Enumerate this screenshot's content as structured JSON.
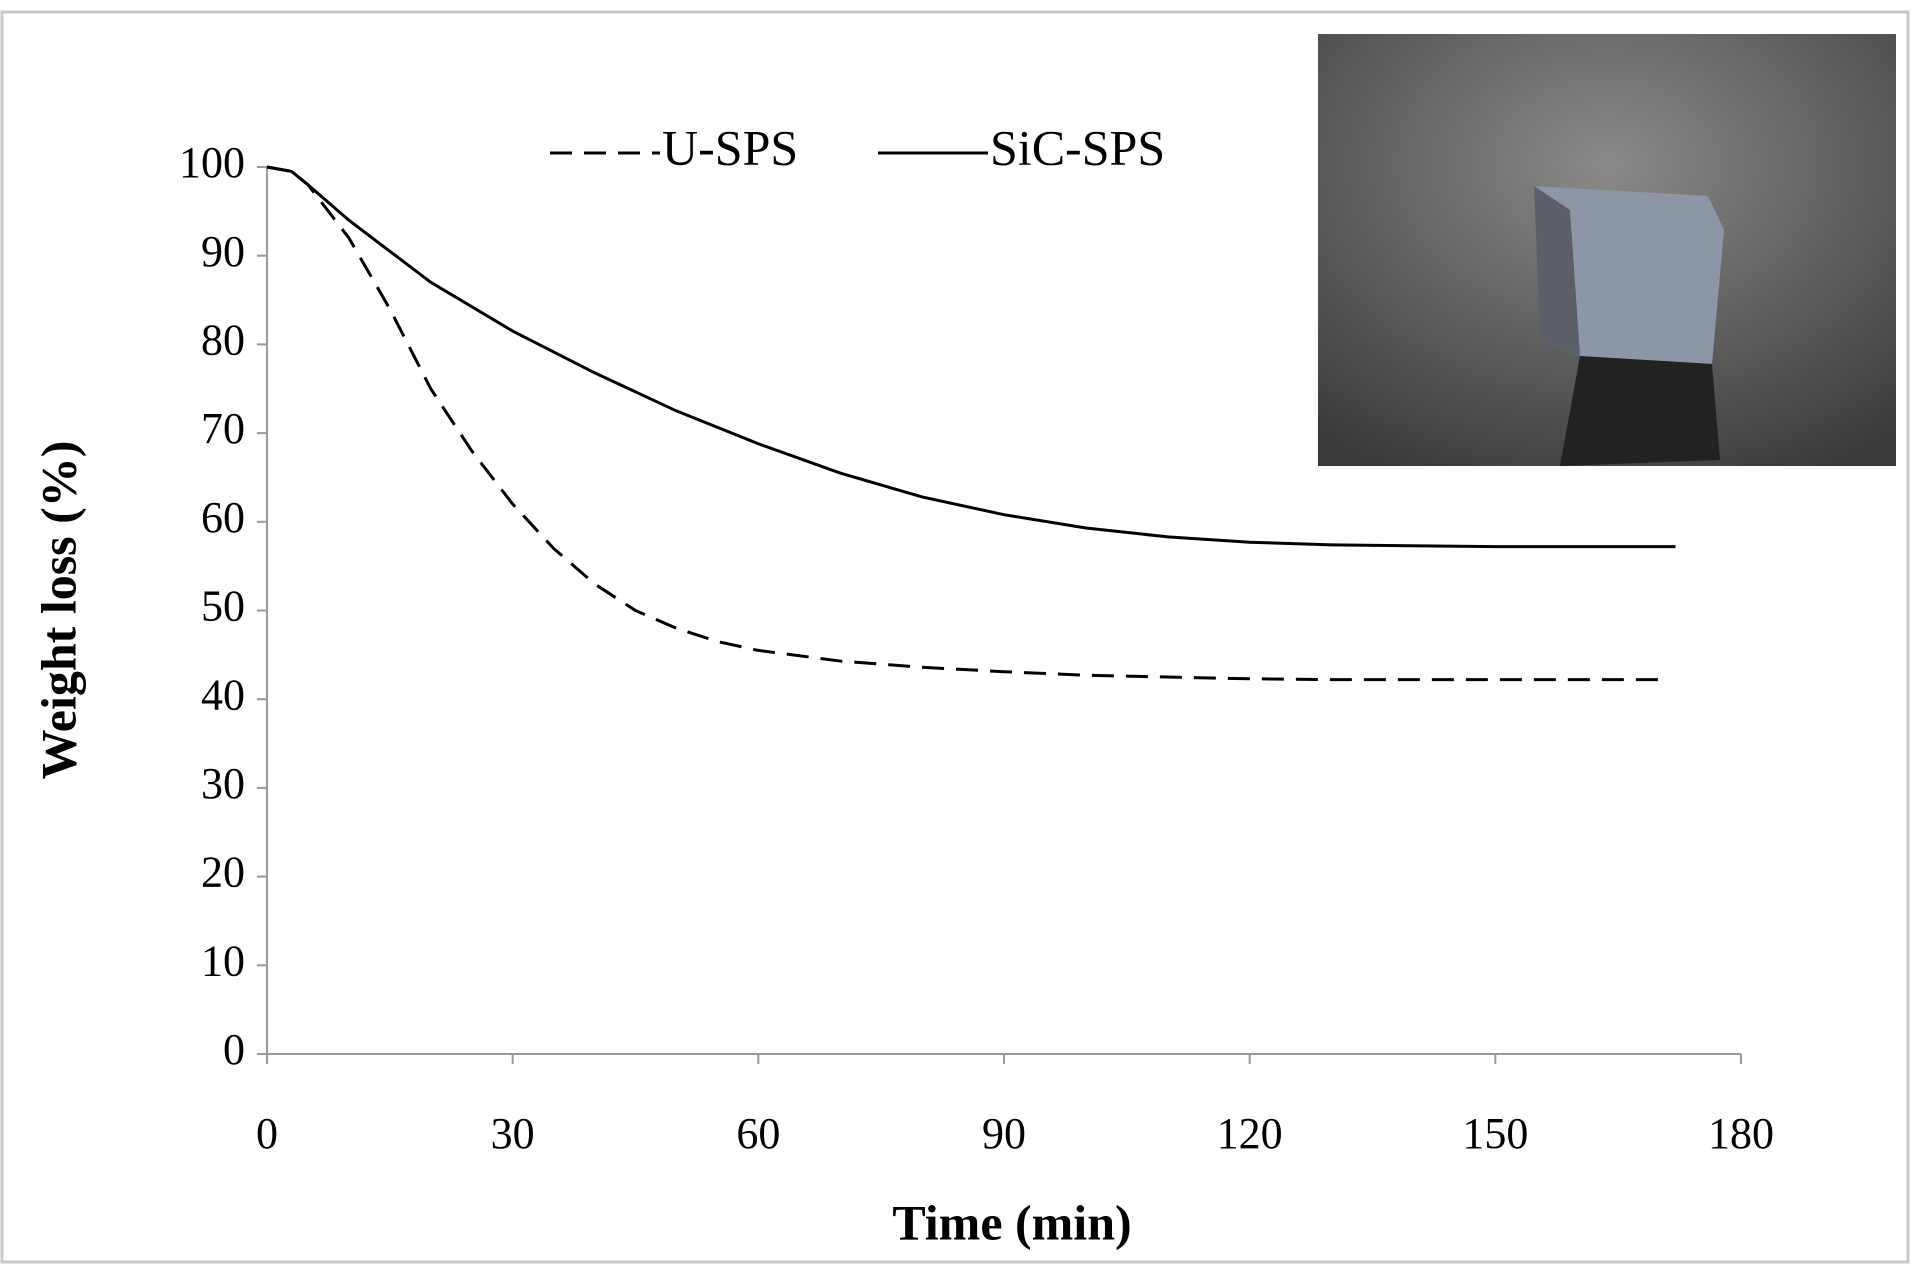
{
  "chart_data": {
    "type": "line",
    "x_label": "Time (min)",
    "y_label": "Weight loss (%)",
    "xlim": [
      0,
      180
    ],
    "xticks": [
      0,
      30,
      60,
      90,
      120,
      150,
      180
    ],
    "ylim": [
      0,
      100
    ],
    "yticks": [
      0,
      10,
      20,
      30,
      40,
      50,
      60,
      70,
      80,
      90,
      100
    ],
    "grid": false,
    "legend": "top",
    "series": [
      {
        "name": "U-SPS",
        "color": "#000000",
        "dash": true,
        "x": [
          0,
          3,
          5,
          10,
          15,
          20,
          25,
          30,
          35,
          40,
          45,
          50,
          55,
          60,
          70,
          80,
          90,
          100,
          110,
          120,
          130,
          150,
          171
        ],
        "values": [
          100,
          99.5,
          98,
          92,
          84,
          75,
          68,
          62,
          57,
          53,
          50,
          48,
          46.5,
          45.5,
          44.3,
          43.6,
          43.1,
          42.7,
          42.5,
          42.3,
          42.2,
          42.2,
          42.2
        ]
      },
      {
        "name": "SiC-SPS",
        "color": "#000000",
        "dash": false,
        "x": [
          0,
          3,
          5,
          10,
          15,
          20,
          30,
          40,
          50,
          60,
          70,
          80,
          90,
          100,
          110,
          120,
          130,
          150,
          172
        ],
        "values": [
          100,
          99.5,
          98,
          94,
          90.5,
          87,
          81.5,
          76.8,
          72.5,
          68.8,
          65.5,
          62.8,
          60.8,
          59.3,
          58.3,
          57.7,
          57.4,
          57.2,
          57.2
        ]
      }
    ]
  }
}
